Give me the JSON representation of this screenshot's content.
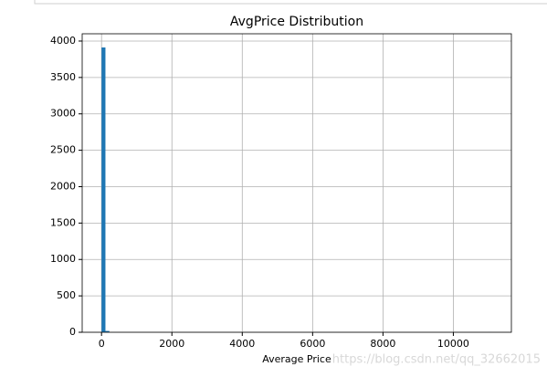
{
  "chart_data": {
    "type": "histogram",
    "title": "AvgPrice Distribution",
    "x_label": "Average Price",
    "bins": [
      0,
      111,
      222,
      333,
      444,
      555,
      666,
      777,
      888,
      999,
      1110,
      1221,
      1332,
      1443,
      1554,
      1665,
      1776,
      1887,
      1998,
      2109,
      2220,
      2331,
      2442,
      2553,
      2664,
      2775,
      2886,
      2997,
      3108,
      3219,
      3330,
      3441,
      3552,
      3663,
      3774,
      3885,
      3996,
      4107,
      4218,
      4329,
      4440,
      4551,
      4662,
      4773,
      4884,
      4995,
      5106,
      5217,
      5328,
      5439,
      5550,
      5661,
      5772,
      5883,
      5994,
      6105,
      6216,
      6327,
      6438,
      6549,
      6660,
      6771,
      6882,
      6993,
      7104,
      7215,
      7326,
      7437,
      7548,
      7659,
      7770,
      7881,
      7992,
      8103,
      8214,
      8325,
      8436,
      8547,
      8658,
      8769,
      8880,
      8991,
      9102,
      9213,
      9324,
      9435,
      9546,
      9657,
      9768,
      9879,
      9990,
      10101,
      10212,
      10323,
      10434,
      10545,
      10656,
      10767,
      10878,
      10989,
      11100
    ],
    "values": [
      3912,
      18,
      0,
      0,
      0,
      0,
      0,
      0,
      0,
      0,
      0,
      0,
      0,
      0,
      0,
      0,
      0,
      0,
      0,
      0,
      0,
      0,
      0,
      0,
      0,
      0,
      0,
      0,
      0,
      0,
      0,
      0,
      0,
      0,
      0,
      0,
      0,
      0,
      0,
      0,
      0,
      0,
      0,
      0,
      0,
      0,
      0,
      0,
      0,
      0,
      0,
      0,
      0,
      0,
      0,
      0,
      0,
      0,
      0,
      0,
      0,
      0,
      0,
      0,
      0,
      0,
      0,
      0,
      0,
      0,
      0,
      0,
      0,
      0,
      0,
      0,
      0,
      0,
      0,
      0,
      0,
      0,
      0,
      0,
      0,
      0,
      0,
      0,
      0,
      0,
      0,
      0,
      0,
      0,
      0,
      0,
      0,
      0,
      0,
      1
    ],
    "color": "#1f77b4",
    "xlim": [
      -550,
      11650
    ],
    "xticks": [
      0,
      2000,
      4000,
      6000,
      8000,
      10000
    ],
    "ylim": [
      0,
      4100
    ],
    "yticks": [
      0,
      500,
      1000,
      1500,
      2000,
      2500,
      3000,
      3500,
      4000
    ],
    "grid": true,
    "watermark": "https://blog.csdn.net/qq_32662015"
  }
}
